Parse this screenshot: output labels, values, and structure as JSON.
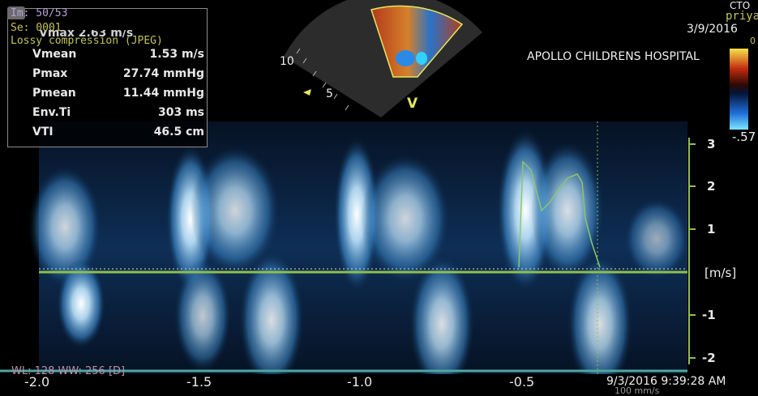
{
  "header": {
    "image_number": "Im: 50/53",
    "series": "Se: 0001",
    "compression": "Lossy compression (JPEG)",
    "partial_top_right_1": "CTO",
    "partial_top_right_2": "priya",
    "date_top": "3/9/2016",
    "hospital": "APOLLO CHILDRENS  HOSPITAL",
    "colorbar_top_label": "0",
    "colorbar_bottom_value": "-.57"
  },
  "measurements": {
    "partial_first_row": "Vmax    2.63 m/s",
    "rows": [
      {
        "label": "Vmean",
        "value": "1.53 m/s"
      },
      {
        "label": "Pmax",
        "value": "27.74 mmHg"
      },
      {
        "label": "Pmean",
        "value": "11.44 mmHg"
      },
      {
        "label": "Env.Ti",
        "value": "303 ms"
      },
      {
        "label": "VTI",
        "value": "46.5 cm"
      }
    ]
  },
  "sector": {
    "depth_10": "10",
    "depth_5": "5",
    "v_marker": "V"
  },
  "y_axis": {
    "unit": "[m/s]",
    "ticks": [
      "3",
      "2",
      "1",
      "-1",
      "-2"
    ]
  },
  "x_axis": {
    "ticks": [
      "-2.0",
      "-1.5",
      "-1.0",
      "-0.5"
    ]
  },
  "footer": {
    "window_level": "WL: 128 WW: 256 [D]",
    "timestamp": "9/3/2016 9:39:28 AM",
    "sweep_speed": "100 mm/s"
  },
  "colors": {
    "overlay_yellow": "#c4c45a",
    "trace_green": "#88c86a",
    "baseline": "#8fbf4a",
    "doppler_blue": "#4f9fd8"
  }
}
